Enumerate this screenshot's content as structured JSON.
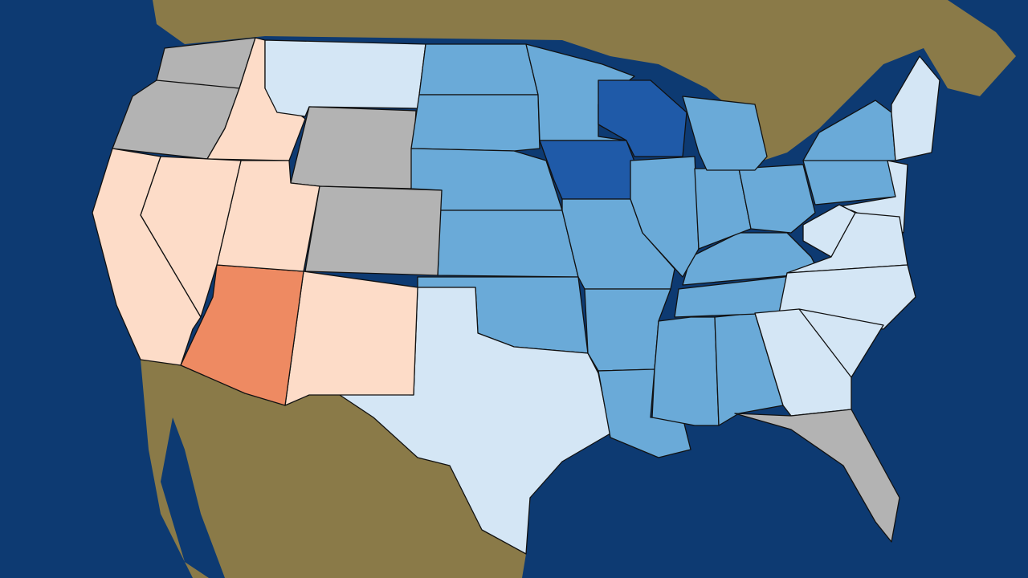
{
  "map": {
    "ocean": "#0d3a72",
    "land": "#8a7a48",
    "classes": [
      "#b3b3b3",
      "#fddcc8",
      "#ee8a62",
      "#d4e6f5",
      "#6aaad8",
      "#1f5aa8"
    ]
  }
}
